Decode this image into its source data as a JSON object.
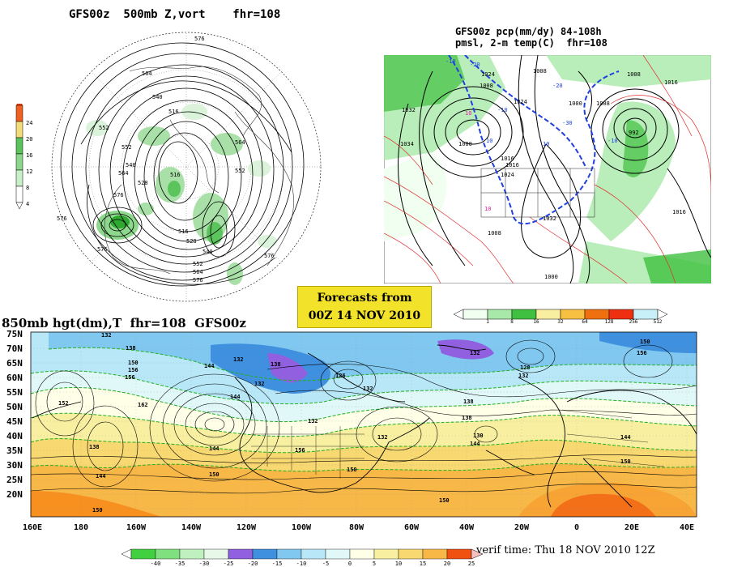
{
  "top_left": {
    "title": "GFS00z  500mb Z,vort    fhr=108",
    "legend_values": [
      "24",
      "20",
      "16",
      "12",
      "8",
      "4"
    ],
    "contour_labels": [
      "576",
      "564",
      "540",
      "516",
      "552",
      "564",
      "540",
      "516",
      "528",
      "552",
      "564",
      "576",
      "540",
      "516",
      "528",
      "552",
      "564",
      "576",
      "576",
      "576",
      "576",
      "552"
    ]
  },
  "top_right": {
    "title_line1": "GFS00z pcp(mm/dy) 84-108h",
    "title_line2": "pmsl, 2-m temp(C)  fhr=108",
    "pressure_labels": [
      "1032",
      "1034",
      "1000",
      "1008",
      "1016",
      "1024",
      "1000",
      "992",
      "1008",
      "1016",
      "1032",
      "1016",
      "1024",
      "1008",
      "1008",
      "1016",
      "1000",
      "1008",
      "1024"
    ],
    "temp_labels": [
      "-10",
      "-20",
      "-10",
      "-20",
      "-30",
      "10",
      "10",
      "-10",
      "10",
      "10"
    ],
    "legend_values": [
      "1",
      "8",
      "16",
      "32",
      "64",
      "128",
      "256",
      "512"
    ]
  },
  "forecast": {
    "line1": "Forecasts from",
    "line2": "00Z 14 NOV 2010"
  },
  "bottom": {
    "title": "850mb hgt(dm),T  fhr=108  GFS00z",
    "lat_labels": [
      "75N",
      "70N",
      "65N",
      "60N",
      "55N",
      "50N",
      "45N",
      "40N",
      "35N",
      "30N",
      "25N",
      "20N"
    ],
    "lon_labels": [
      "160E",
      "180",
      "160W",
      "140W",
      "120W",
      "100W",
      "80W",
      "60W",
      "40W",
      "20W",
      "0",
      "20E",
      "40E"
    ],
    "height_labels": [
      "132",
      "138",
      "150",
      "156",
      "152",
      "162",
      "144",
      "132",
      "138",
      "144",
      "126",
      "132",
      "138",
      "132",
      "128",
      "150",
      "156",
      "144",
      "132",
      "138",
      "150",
      "144",
      "156",
      "150",
      "132",
      "144",
      "150",
      "130",
      "144",
      "150",
      "150",
      "156",
      "132",
      "138",
      "132"
    ],
    "legend_values": [
      "-40",
      "-35",
      "-30",
      "-25",
      "-20",
      "-15",
      "-10",
      "-5",
      "0",
      "5",
      "10",
      "15",
      "20",
      "25"
    ],
    "verif": "verif time: Thu 18 NOV 2010 12Z"
  },
  "colors": {
    "vort_greens": [
      "#daf3da",
      "#a8e0a8",
      "#5cc45c",
      "#2ea82e"
    ],
    "legend_tl": [
      "#ffffff",
      "#c8efc8",
      "#8ed88e",
      "#5cc45c",
      "#f3dc78",
      "#f2b040",
      "#ee6020"
    ],
    "pcp_scale": [
      "#f0fff0",
      "#a8e8a8",
      "#40c040",
      "#f8f0a0",
      "#f8c040",
      "#f07010",
      "#ee3010",
      "#c8f0f8"
    ],
    "temp_scale": [
      "#40d040",
      "#80e080",
      "#c0f0c0",
      "#9060e0",
      "#4090e0",
      "#80c8f0",
      "#b8e8f8",
      "#e0f8f8",
      "#ffffe8",
      "#f8f0a0",
      "#f8d870",
      "#f8b848",
      "#f89020",
      "#f05010"
    ]
  }
}
